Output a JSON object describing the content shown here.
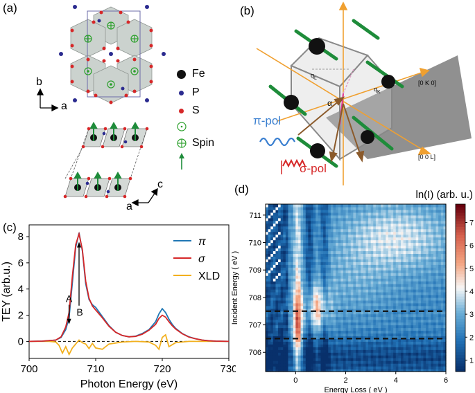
{
  "figure": {
    "panel_labels": {
      "a": "(a)",
      "b": "(b)",
      "c": "(c)",
      "d": "(d)"
    },
    "legend_a": [
      {
        "label": "Fe",
        "color": "#111111"
      },
      {
        "label": "P",
        "color": "#2b2b8f"
      },
      {
        "label": "S",
        "color": "#d62728"
      },
      {
        "label": "Spin",
        "color": "#2ca02c"
      }
    ],
    "axes_a": {
      "top_x": "a",
      "top_y": "b",
      "bottom_x": "a",
      "bottom_y": "c"
    },
    "panel_b": {
      "qL": "q",
      "qL_sub": "L",
      "qK": "q",
      "qK_sub": "K",
      "k_axis": "[0 K 0]",
      "l_axis": "[0 0 L]",
      "alpha": "α",
      "pi_pol": "π-pol",
      "sigma_pol": "σ-pol"
    },
    "colors": {
      "pi": "#1f77b4",
      "sigma": "#d62728",
      "xld": "#f2b01e",
      "orange_axis": "#f0a030",
      "spin_green": "#1e8c3a"
    }
  },
  "chart_data": [
    {
      "type": "line",
      "panel": "(c)",
      "xlabel": "Photon Energy (eV)",
      "ylabel": "TEY (arb.u.)",
      "xlim": [
        700,
        730
      ],
      "ylim": [
        -1.3,
        8.9
      ],
      "xticks": [
        700,
        710,
        720,
        730
      ],
      "yticks": [
        0,
        2,
        4,
        6,
        8
      ],
      "annotations": [
        {
          "text": "A",
          "x": 706.0,
          "y": 2.9
        },
        {
          "text": "B",
          "x": 707.5,
          "y": 2.2
        }
      ],
      "series": [
        {
          "name": "π",
          "color": "#1f77b4",
          "x": [
            700,
            702,
            704,
            704.8,
            705.5,
            706,
            706.5,
            707,
            707.5,
            708,
            708.5,
            709,
            709.5,
            710,
            711,
            712,
            713,
            714,
            715,
            716,
            717,
            718,
            719,
            719.5,
            720,
            720.5,
            721,
            721.5,
            722,
            723,
            724,
            725,
            726,
            727,
            728,
            730
          ],
          "y": [
            0,
            0.02,
            0.1,
            0.3,
            0.9,
            1.8,
            4.5,
            7.2,
            8.3,
            6.9,
            4.4,
            3.2,
            2.8,
            2.6,
            1.9,
            1.2,
            0.7,
            0.45,
            0.35,
            0.4,
            0.6,
            0.9,
            1.5,
            2.1,
            2.5,
            2.2,
            1.7,
            1.3,
            1.0,
            0.6,
            0.35,
            0.2,
            0.1,
            0.05,
            0.02,
            0
          ]
        },
        {
          "name": "σ",
          "color": "#d62728",
          "x": [
            700,
            702,
            704,
            704.8,
            705.5,
            706,
            706.5,
            707,
            707.5,
            708,
            708.5,
            709,
            709.5,
            710,
            711,
            712,
            713,
            714,
            715,
            716,
            717,
            718,
            719,
            719.5,
            720,
            720.5,
            721,
            721.5,
            722,
            723,
            724,
            725,
            726,
            727,
            728,
            730
          ],
          "y": [
            0,
            0.02,
            0.1,
            0.35,
            1.1,
            2.2,
            5.0,
            7.4,
            8.2,
            7.0,
            4.6,
            3.3,
            2.7,
            2.4,
            1.8,
            1.15,
            0.7,
            0.45,
            0.35,
            0.38,
            0.55,
            0.85,
            1.3,
            1.75,
            2.0,
            1.85,
            1.5,
            1.2,
            0.95,
            0.58,
            0.33,
            0.2,
            0.1,
            0.05,
            0.02,
            0
          ]
        },
        {
          "name": "XLD",
          "color": "#f2b01e",
          "x": [
            700,
            703,
            704,
            704.5,
            705,
            705.5,
            706,
            706.5,
            707,
            707.5,
            708,
            708.5,
            709,
            709.5,
            710,
            711,
            712,
            714,
            716,
            718,
            719,
            719.5,
            720,
            720.5,
            721,
            722,
            724,
            726,
            728,
            730
          ],
          "y": [
            0,
            0,
            -0.05,
            -0.3,
            -0.9,
            -0.4,
            -1.0,
            -0.5,
            -0.2,
            0.1,
            -0.1,
            -0.2,
            -0.55,
            -0.15,
            -0.5,
            -0.6,
            -0.2,
            -0.05,
            0,
            -0.05,
            -0.3,
            -0.6,
            0.3,
            0.5,
            -0.4,
            -0.1,
            0,
            0,
            0,
            0
          ]
        }
      ]
    },
    {
      "type": "heatmap",
      "panel": "(d)",
      "title": "ln(I) (arb. u.)",
      "xlabel": "Energy Loss ( eV )",
      "ylabel": "Incident Energy ( eV )",
      "xlim": [
        -1.2,
        6
      ],
      "ylim": [
        705.3,
        711.4
      ],
      "xticks": [
        0,
        2,
        4,
        6
      ],
      "yticks": [
        706,
        707,
        708,
        709,
        710,
        711
      ],
      "colorbar_ticks": [
        1,
        2,
        3,
        4,
        5,
        6,
        7
      ],
      "clim": [
        0.5,
        7.8
      ],
      "dashed_lines_y": [
        706.5,
        707.5
      ]
    }
  ]
}
